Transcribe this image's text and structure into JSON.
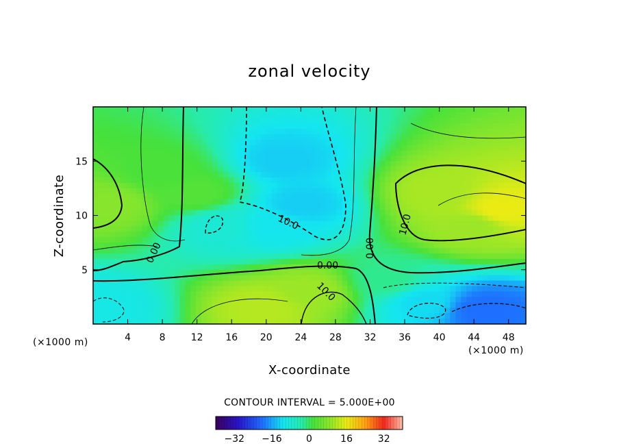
{
  "chart_data": {
    "type": "heatmap",
    "title": "zonal velocity",
    "xlabel": "X-coordinate",
    "ylabel": "Z-coordinate",
    "x_unit_label": "(×1000 m)",
    "x_unit_label_right": "(×1000 m)",
    "xlim": [
      0,
      50
    ],
    "ylim": [
      0,
      20
    ],
    "x_ticks": [
      4,
      8,
      12,
      16,
      20,
      24,
      28,
      32,
      36,
      40,
      44,
      48
    ],
    "y_ticks": [
      5,
      10,
      15
    ],
    "contour_interval_note": "CONTOUR INTERVAL = 5.000E+00",
    "contour_labels": [
      "0.00",
      "10.0",
      "10.0",
      "0.00",
      "0.00",
      "10.0",
      "10.0"
    ],
    "colorbar": {
      "range": [
        -40,
        40
      ],
      "tick_values": [
        -32,
        -16,
        0,
        16,
        32
      ],
      "tick_labels": [
        "−32",
        "−16",
        "0",
        "16",
        "32"
      ]
    },
    "field_features": [
      {
        "x": 2,
        "z": 11,
        "value": 8
      },
      {
        "x": 8,
        "z": 14,
        "value": 2
      },
      {
        "x": 12,
        "z": 12,
        "value": 3
      },
      {
        "x": 22,
        "z": 15,
        "value": -13
      },
      {
        "x": 24,
        "z": 11,
        "value": -13
      },
      {
        "x": 21,
        "z": 9,
        "value": -11
      },
      {
        "x": 15,
        "z": 9,
        "value": -8
      },
      {
        "x": 20,
        "z": 1.5,
        "value": 12
      },
      {
        "x": 25,
        "z": 3,
        "value": 10
      },
      {
        "x": 40,
        "z": 12,
        "value": 11
      },
      {
        "x": 47,
        "z": 10.5,
        "value": 16
      },
      {
        "x": 44,
        "z": 9,
        "value": 10
      },
      {
        "x": 45,
        "z": 1.3,
        "value": -20
      },
      {
        "x": 38,
        "z": 2,
        "value": -12
      },
      {
        "x": 1,
        "z": 1.5,
        "value": -10
      },
      {
        "x": 34,
        "z": 4,
        "value": -2
      }
    ],
    "colors": {
      "background": "#ffffff",
      "frame": "#000000",
      "contour": "#000000"
    }
  }
}
